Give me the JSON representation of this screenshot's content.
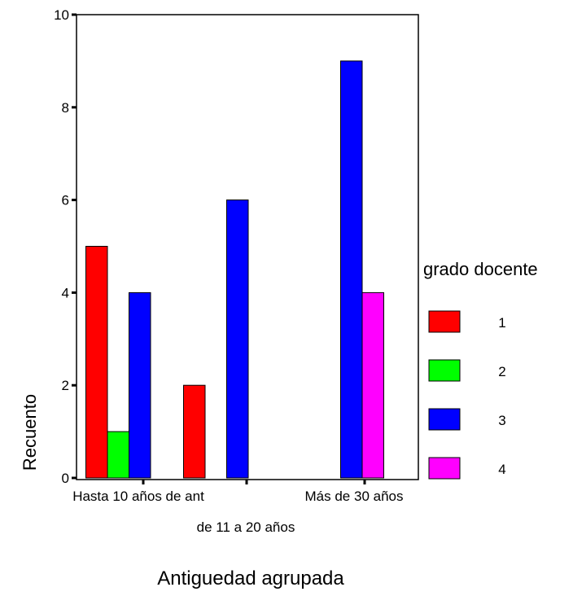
{
  "chart_data": {
    "type": "bar",
    "title": "",
    "xlabel": "Antiguedad agrupada",
    "ylabel": "Recuento",
    "ylim": [
      0,
      10
    ],
    "yticks": [
      0,
      2,
      4,
      6,
      8,
      10
    ],
    "grid": false,
    "legend_position": "right",
    "categories": [
      "Hasta 10 años de ant",
      "de 11 a 20 años",
      "Más de 30 años"
    ],
    "legend_title": "grado docente",
    "series": [
      {
        "name": "1",
        "color": "#ff0000",
        "values": [
          5,
          2,
          0
        ]
      },
      {
        "name": "2",
        "color": "#00ff00",
        "values": [
          1,
          0,
          0
        ]
      },
      {
        "name": "3",
        "color": "#0000ff",
        "values": [
          4,
          6,
          9
        ]
      },
      {
        "name": "4",
        "color": "#ff00ff",
        "values": [
          0,
          0,
          4
        ]
      }
    ]
  }
}
